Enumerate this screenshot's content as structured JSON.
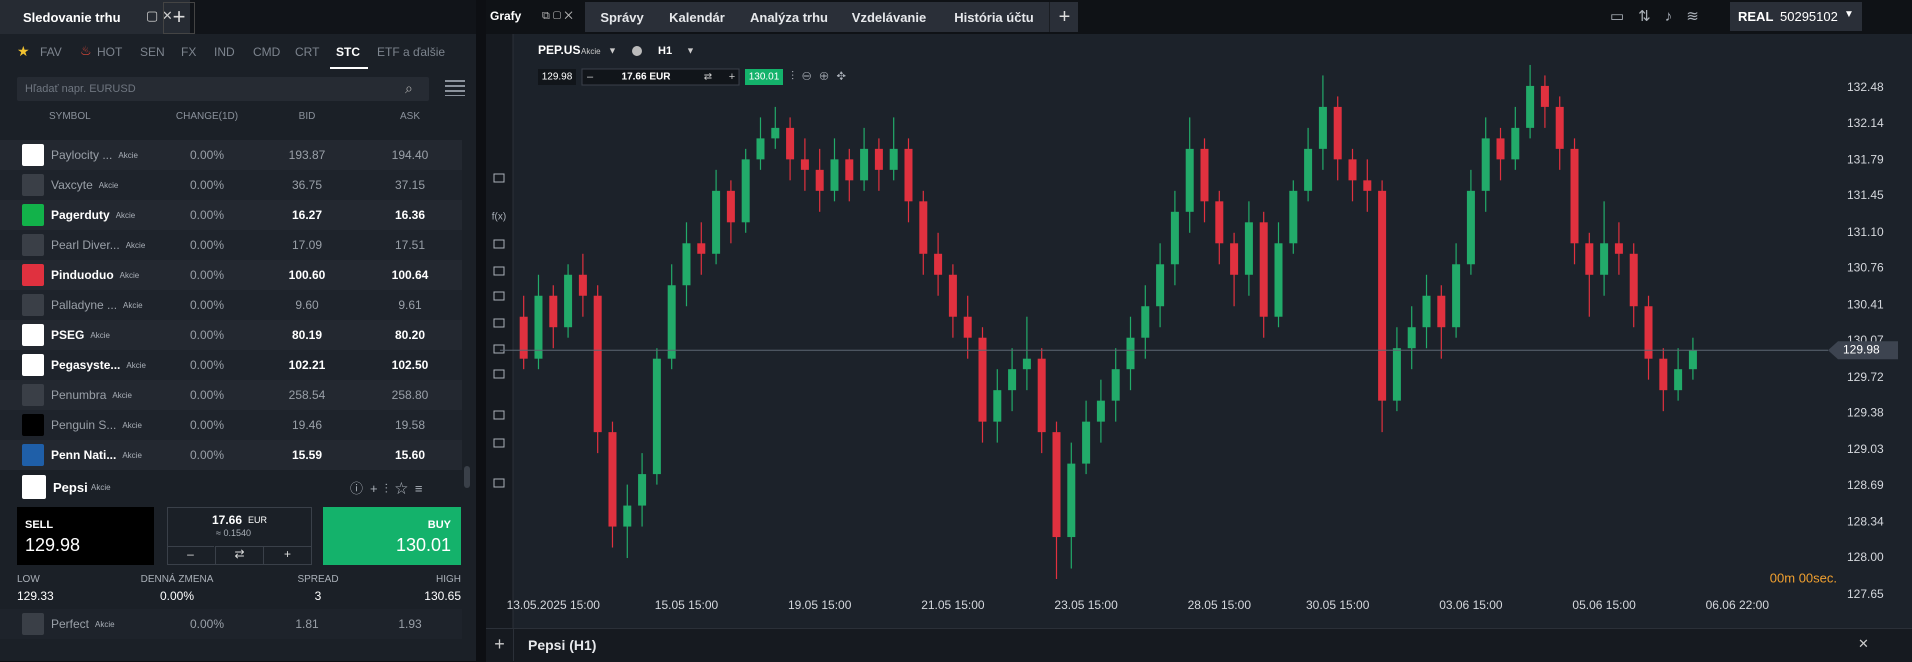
{
  "watchlist": {
    "title": "Sledovanie trhu",
    "tabs": [
      "FAV",
      "HOT",
      "SEN",
      "FX",
      "IND",
      "CMD",
      "CRT",
      "STC",
      "ETF a ďalšie"
    ],
    "active_tab": 7,
    "search_placeholder": "Hľadať napr. EURUSD",
    "columns": [
      "SYMBOL",
      "CHANGE(1D)",
      "BID",
      "ASK"
    ],
    "rows": [
      {
        "name": "Paylocity ...",
        "type": "Akcie",
        "change": "0.00%",
        "bid": "193.87",
        "ask": "194.40",
        "bold": false,
        "icon": "#ffffff"
      },
      {
        "name": "Vaxcyte",
        "type": "Akcie",
        "change": "0.00%",
        "bid": "36.75",
        "ask": "37.15",
        "bold": false,
        "icon": "#3a3f47"
      },
      {
        "name": "Pagerduty",
        "type": "Akcie",
        "change": "0.00%",
        "bid": "16.27",
        "ask": "16.36",
        "bold": true,
        "icon": "#12b24a"
      },
      {
        "name": "Pearl Diver...",
        "type": "Akcie",
        "change": "0.00%",
        "bid": "17.09",
        "ask": "17.51",
        "bold": false,
        "icon": "#3a3f47"
      },
      {
        "name": "Pinduoduo",
        "type": "Akcie",
        "change": "0.00%",
        "bid": "100.60",
        "ask": "100.64",
        "bold": true,
        "icon": "#e0313f"
      },
      {
        "name": "Palladyne ...",
        "type": "Akcie",
        "change": "0.00%",
        "bid": "9.60",
        "ask": "9.61",
        "bold": false,
        "icon": "#3a3f47"
      },
      {
        "name": "PSEG",
        "type": "Akcie",
        "change": "0.00%",
        "bid": "80.19",
        "ask": "80.20",
        "bold": true,
        "icon": "#ffffff"
      },
      {
        "name": "Pegasyste...",
        "type": "Akcie",
        "change": "0.00%",
        "bid": "102.21",
        "ask": "102.50",
        "bold": true,
        "icon": "#ffffff"
      },
      {
        "name": "Penumbra",
        "type": "Akcie",
        "change": "0.00%",
        "bid": "258.54",
        "ask": "258.80",
        "bold": false,
        "icon": "#3a3f47"
      },
      {
        "name": "Penguin S...",
        "type": "Akcie",
        "change": "0.00%",
        "bid": "19.46",
        "ask": "19.58",
        "bold": false,
        "icon": "#000000"
      },
      {
        "name": "Penn Nati...",
        "type": "Akcie",
        "change": "0.00%",
        "bid": "15.59",
        "ask": "15.60",
        "bold": true,
        "icon": "#1f5fa8"
      }
    ],
    "selected": {
      "name": "Pepsi",
      "type": "Akcie",
      "sell_label": "SELL",
      "sell": "129.98",
      "spread_value": "17.66",
      "spread_currency": "EUR",
      "spread_approx": "≈ 0.1540",
      "buy_label": "BUY",
      "buy": "130.01"
    },
    "stats": [
      {
        "label": "LOW",
        "value": "129.33"
      },
      {
        "label": "DENNÁ ZMENA",
        "value": "0.00%"
      },
      {
        "label": "SPREAD",
        "value": "3"
      },
      {
        "label": "HIGH",
        "value": "130.65"
      }
    ],
    "last_row": {
      "name": "Perfect",
      "type": "Akcie",
      "change": "0.00%",
      "bid": "1.81",
      "ask": "1.93"
    }
  },
  "topbar": {
    "menu": "Grafy",
    "tabs": [
      "Správy",
      "Kalendár",
      "Analýza trhu",
      "Vzdelávanie",
      "História účtu"
    ],
    "account_type": "REAL",
    "account_id": "50295102"
  },
  "chart_panel": {
    "symbol": "PEP.US",
    "type": "Akcie",
    "timeframe": "H1",
    "bid": "129.98",
    "spread": "17.66 EUR",
    "ask": "130.01",
    "tool_fx": "f(x)",
    "timer": "00m 00sec.",
    "footer": "Pepsi (H1)"
  },
  "chart_data": {
    "type": "candlestick",
    "up_color": "#22ab6a",
    "down_color": "#e0313f",
    "grid": false,
    "open": [
      130.3,
      129.9,
      130.5,
      130.2,
      130.7,
      130.5,
      129.2,
      128.3,
      128.5,
      128.8,
      129.9,
      130.6,
      131.0,
      130.9,
      131.5,
      131.2,
      131.8,
      132.0,
      132.1,
      131.8,
      131.7,
      131.5,
      131.8,
      131.6,
      131.9,
      131.7,
      131.9,
      131.4,
      130.9,
      130.7,
      130.3,
      130.1,
      129.3,
      129.6,
      129.8,
      129.9,
      129.2,
      128.2,
      128.9,
      129.3,
      129.5,
      129.8,
      130.1,
      130.4,
      130.8,
      131.3,
      131.9,
      131.4,
      131.0,
      130.7,
      131.2,
      130.3,
      131.0,
      131.5,
      131.9,
      132.3,
      131.8,
      131.6,
      131.5,
      129.5,
      130.0,
      130.2,
      130.5,
      130.2,
      130.8,
      131.5,
      132.0,
      131.8,
      132.1,
      132.5,
      132.3,
      131.9,
      131.0,
      130.7,
      131.0,
      130.9,
      130.4,
      129.9,
      129.6,
      129.8
    ],
    "high": [
      130.5,
      130.7,
      130.6,
      130.8,
      130.9,
      130.6,
      129.3,
      128.7,
      129.0,
      130.0,
      130.8,
      131.2,
      131.2,
      131.7,
      131.6,
      131.9,
      132.2,
      132.3,
      132.2,
      132.0,
      131.9,
      132.0,
      131.9,
      132.1,
      132.0,
      132.2,
      132.0,
      131.5,
      131.1,
      130.8,
      130.5,
      130.2,
      129.8,
      130.0,
      130.3,
      130.0,
      129.3,
      129.1,
      129.5,
      129.7,
      130.0,
      130.3,
      130.6,
      131.0,
      131.5,
      132.2,
      132.0,
      131.5,
      131.1,
      131.4,
      131.3,
      131.2,
      131.6,
      132.1,
      132.6,
      132.4,
      131.9,
      131.8,
      131.6,
      130.2,
      130.4,
      130.7,
      130.6,
      131.0,
      131.7,
      132.2,
      132.1,
      132.3,
      132.7,
      132.6,
      132.4,
      132.0,
      131.1,
      131.4,
      131.2,
      131.0,
      130.5,
      130.0,
      130.0,
      130.1
    ],
    "low": [
      129.8,
      129.8,
      130.0,
      130.1,
      130.3,
      129.0,
      128.1,
      128.0,
      128.3,
      128.7,
      129.8,
      130.4,
      130.7,
      130.8,
      131.0,
      131.1,
      131.7,
      131.9,
      131.6,
      131.5,
      131.3,
      131.4,
      131.4,
      131.5,
      131.5,
      131.6,
      131.2,
      130.7,
      130.5,
      130.1,
      129.9,
      129.1,
      129.1,
      129.4,
      129.6,
      129.0,
      127.8,
      127.9,
      128.8,
      129.1,
      129.3,
      129.6,
      129.9,
      130.2,
      130.6,
      131.1,
      131.2,
      130.8,
      130.4,
      130.5,
      130.1,
      130.2,
      130.9,
      131.4,
      131.7,
      131.6,
      131.4,
      131.3,
      129.2,
      129.4,
      129.8,
      130.0,
      129.9,
      130.1,
      130.7,
      131.3,
      131.6,
      131.7,
      132.0,
      132.1,
      131.7,
      130.8,
      130.3,
      130.5,
      130.7,
      130.2,
      129.7,
      129.4,
      129.5,
      129.7
    ],
    "close": [
      129.9,
      130.5,
      130.2,
      130.7,
      130.5,
      129.2,
      128.3,
      128.5,
      128.8,
      129.9,
      130.6,
      131.0,
      130.9,
      131.5,
      131.2,
      131.8,
      132.0,
      132.1,
      131.8,
      131.7,
      131.5,
      131.8,
      131.6,
      131.9,
      131.7,
      131.9,
      131.4,
      130.9,
      130.7,
      130.3,
      130.1,
      129.3,
      129.6,
      129.8,
      129.9,
      129.2,
      128.2,
      128.9,
      129.3,
      129.5,
      129.8,
      130.1,
      130.4,
      130.8,
      131.3,
      131.9,
      131.4,
      131.0,
      130.7,
      131.2,
      130.3,
      131.0,
      131.5,
      131.9,
      132.3,
      131.8,
      131.6,
      131.5,
      129.5,
      130.0,
      130.2,
      130.5,
      130.2,
      130.8,
      131.5,
      132.0,
      131.8,
      132.1,
      132.5,
      132.3,
      131.9,
      131.0,
      130.7,
      131.0,
      130.9,
      130.4,
      129.9,
      129.6,
      129.8,
      129.98
    ],
    "xlim": [
      -1.6,
      88.6
    ],
    "xticks": [
      {
        "value": 2,
        "label": "13.05.2025 15:00"
      },
      {
        "value": 11,
        "label": "15.05 15:00"
      },
      {
        "value": 20,
        "label": "19.05 15:00"
      },
      {
        "value": 29,
        "label": "21.05 15:00"
      },
      {
        "value": 38,
        "label": "23.05 15:00"
      },
      {
        "value": 47,
        "label": "28.05 15:00"
      },
      {
        "value": 55,
        "label": "30.05 15:00"
      },
      {
        "value": 64,
        "label": "03.06 15:00"
      },
      {
        "value": 73,
        "label": "05.06 15:00"
      },
      {
        "value": 82,
        "label": "06.06 22:00"
      }
    ],
    "ylim": [
      127.6,
      132.89
    ],
    "yticks": [
      132.48,
      132.14,
      131.79,
      131.45,
      {
        "value": 131.1,
        "label": "131.10"
      },
      130.76,
      130.41,
      130.07,
      129.72,
      129.38,
      129.03,
      128.69,
      128.34,
      {
        "value": 128,
        "label": "128.00"
      },
      127.65
    ],
    "last_price": 129.98
  }
}
